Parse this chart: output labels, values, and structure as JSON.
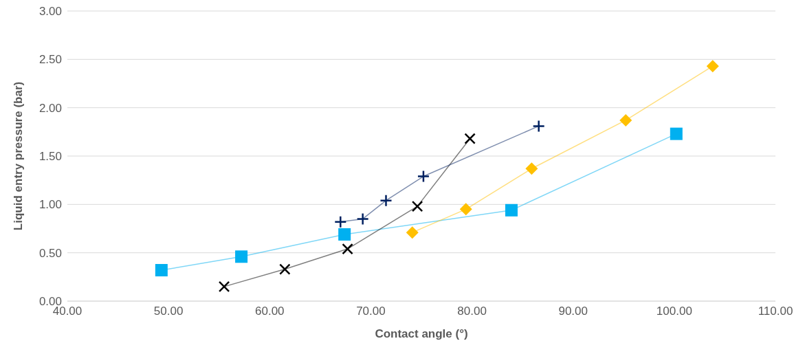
{
  "chart_data": {
    "type": "line",
    "xlabel": "Contact angle (°)",
    "ylabel": "Liquid entry pressure (bar)",
    "xlim": [
      40,
      110
    ],
    "ylim": [
      0,
      3
    ],
    "xticks": [
      {
        "value": 40,
        "label": "40.00"
      },
      {
        "value": 50,
        "label": "50.00"
      },
      {
        "value": 60,
        "label": "60.00"
      },
      {
        "value": 70,
        "label": "70.00"
      },
      {
        "value": 80,
        "label": "80.00"
      },
      {
        "value": 90,
        "label": "90.00"
      },
      {
        "value": 100,
        "label": "100.00"
      },
      {
        "value": 110,
        "label": "110.00"
      }
    ],
    "yticks": [
      {
        "value": 0,
        "label": "0.00"
      },
      {
        "value": 0.5,
        "label": "0.50"
      },
      {
        "value": 1,
        "label": "1.00"
      },
      {
        "value": 1.5,
        "label": "1.50"
      },
      {
        "value": 2,
        "label": "2.00"
      },
      {
        "value": 2.5,
        "label": "2.50"
      },
      {
        "value": 3,
        "label": "3.00"
      }
    ],
    "grid": "y",
    "legend": false,
    "series": [
      {
        "color": "#00b0f0",
        "marker": "square",
        "x": [
          49.3,
          57.2,
          67.4,
          83.9,
          100.2
        ],
        "values": [
          0.32,
          0.46,
          0.69,
          0.94,
          1.73
        ]
      },
      {
        "color": "#ffc000",
        "marker": "diamond",
        "x": [
          74.1,
          79.4,
          85.9,
          95.2,
          103.8
        ],
        "values": [
          0.71,
          0.95,
          1.37,
          1.87,
          2.43
        ]
      },
      {
        "color": "#000000",
        "marker": "cross",
        "x": [
          55.5,
          61.5,
          67.7,
          74.6,
          79.8
        ],
        "values": [
          0.15,
          0.33,
          0.54,
          0.98,
          1.68
        ]
      },
      {
        "color": "#002060",
        "marker": "plus",
        "x": [
          67.0,
          69.2,
          71.5,
          75.2,
          86.6
        ],
        "values": [
          0.82,
          0.85,
          1.04,
          1.29,
          1.81
        ]
      }
    ]
  }
}
